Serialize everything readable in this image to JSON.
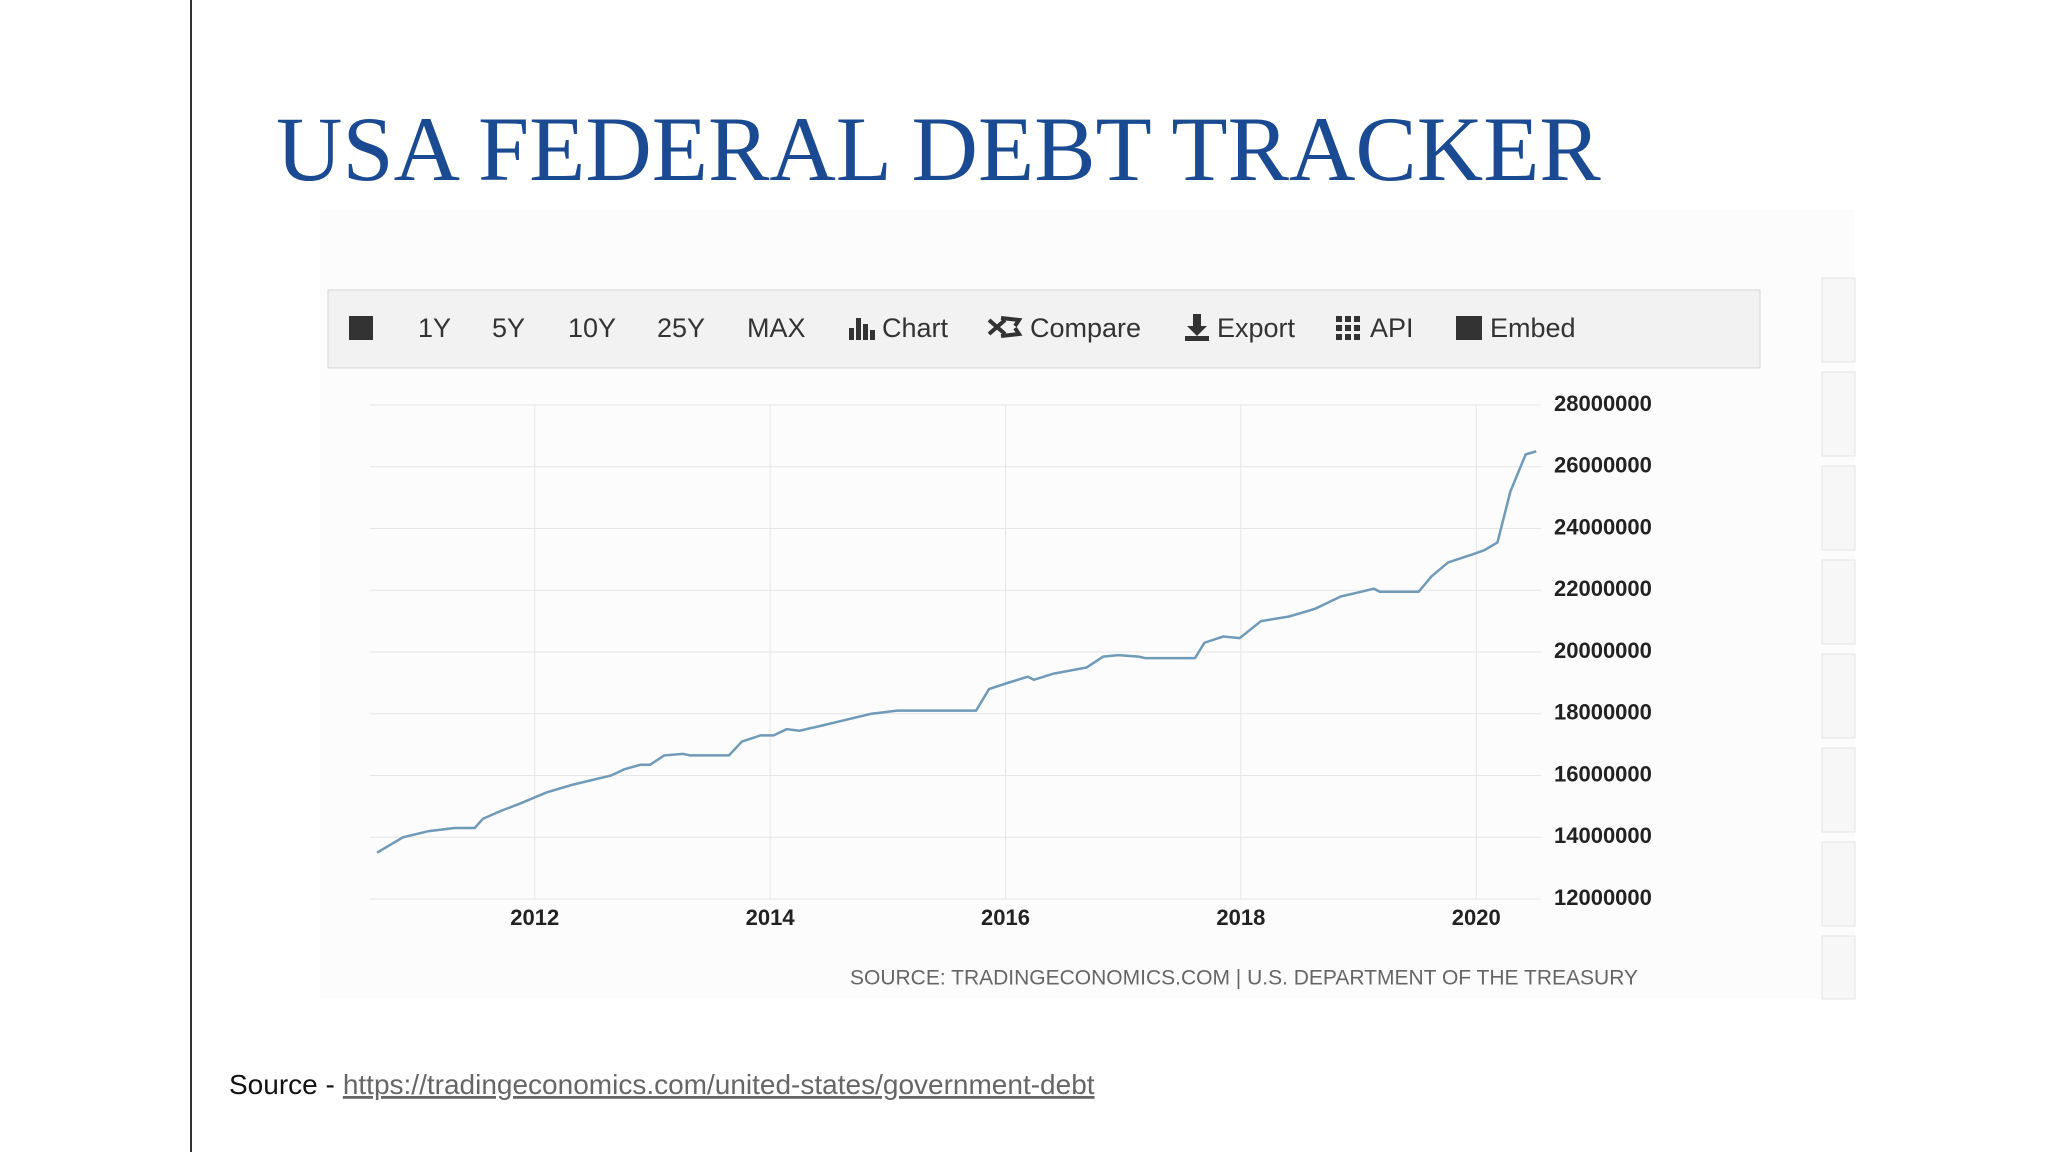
{
  "slide_title": "USA FEDERAL DEBT TRACKER",
  "toolbar": [
    "1Y",
    "5Y",
    "10Y",
    "25Y",
    "MAX",
    "Chart",
    "Compare",
    "Export",
    "API",
    "Embed"
  ],
  "chart_data": {
    "type": "line",
    "source": "SOURCE: TRADINGECONOMICS.COM | U.S. DEPARTMENT OF THE TREASURY",
    "x": [
      2010.66,
      2010.88,
      2011.1,
      2011.32,
      2011.49,
      2011.56,
      2011.71,
      2011.88,
      2012.1,
      2012.32,
      2012.65,
      2012.76,
      2012.9,
      2012.98,
      2013.1,
      2013.26,
      2013.32,
      2013.65,
      2013.76,
      2013.92,
      2014.03,
      2014.14,
      2014.25,
      2014.42,
      2014.64,
      2014.86,
      2014.97,
      2015.08,
      2015.41,
      2015.75,
      2015.86,
      2016.02,
      2016.19,
      2016.24,
      2016.41,
      2016.69,
      2016.83,
      2016.96,
      2017.13,
      2017.19,
      2017.61,
      2017.69,
      2017.85,
      2017.99,
      2018.17,
      2018.41,
      2018.63,
      2018.85,
      2019.02,
      2019.13,
      2019.18,
      2019.51,
      2019.62,
      2019.76,
      2019.96,
      2020.07,
      2020.18,
      2020.29,
      2020.42,
      2020.51
    ],
    "series": [
      {
        "color": "#6f9ab8",
        "values": [
          13500000,
          14000000,
          14200000,
          14300000,
          14300000,
          14600000,
          14850000,
          15100000,
          15450000,
          15700000,
          16000000,
          16200000,
          16350000,
          16350000,
          16650000,
          16700000,
          16650000,
          16650000,
          17100000,
          17300000,
          17300000,
          17500000,
          17450000,
          17600000,
          17800000,
          18000000,
          18050000,
          18100000,
          18100000,
          18100000,
          18800000,
          19000000,
          19200000,
          19100000,
          19300000,
          19500000,
          19850000,
          19900000,
          19850000,
          19800000,
          19800000,
          20300000,
          20500000,
          20450000,
          21000000,
          21150000,
          21400000,
          21800000,
          21950000,
          22050000,
          21950000,
          21950000,
          22450000,
          22900000,
          23150000,
          23300000,
          23550000,
          25200000,
          26400000,
          26500000
        ]
      }
    ],
    "xlim": [
      2010.6,
      2020.55
    ],
    "xticks": [
      2012,
      2014,
      2016,
      2018,
      2020
    ],
    "ylim": [
      12000000,
      28000000
    ],
    "yticks": [
      12000000,
      14000000,
      16000000,
      18000000,
      20000000,
      22000000,
      24000000,
      26000000,
      28000000
    ],
    "grid": true
  },
  "source": {
    "label": "Source -",
    "url": "https://tradingeconomics.com/united-states/government-debt"
  }
}
